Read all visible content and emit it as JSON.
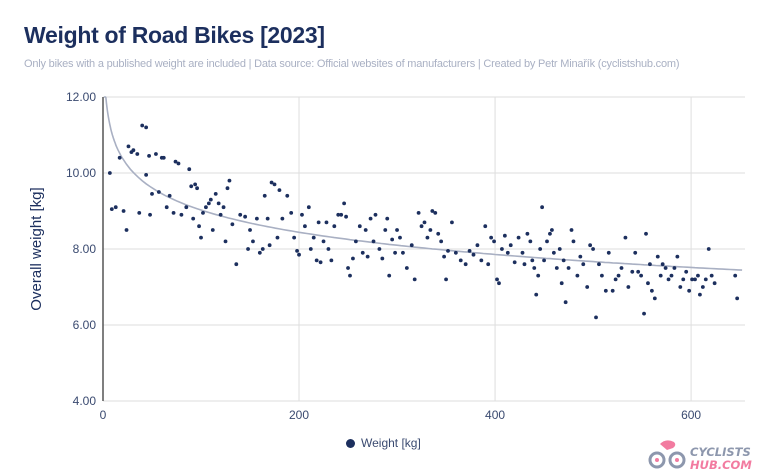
{
  "title": "Weight of Road Bikes [2023]",
  "subtitle": "Only bikes with a published weight are included | Data source: Official websites of manufacturers | Created by Petr Minařík (cyclistshub.com)",
  "logo": {
    "line1": "CYCLISTS",
    "line2": "HUB.COM",
    "colors": {
      "pink": "#f27ba0",
      "gray": "#8d97ad"
    }
  },
  "chart_data": {
    "type": "scatter",
    "title": "Weight of Road Bikes [2023]",
    "xlabel": "",
    "ylabel": "Overall weight [kg]",
    "xlim": [
      0,
      655
    ],
    "ylim": [
      4,
      12
    ],
    "xticks": [
      0,
      200,
      400,
      600
    ],
    "yticks": [
      4,
      6,
      8,
      10,
      12
    ],
    "ytick_labels": [
      "4.00",
      "6.00",
      "8.00",
      "10.00",
      "12.00"
    ],
    "grid": true,
    "legend_position": "bottom",
    "trendline": {
      "type": "logarithmic",
      "color": "#a9b0c3"
    },
    "colors": {
      "points": "#1c2f5e",
      "grid": "#dedede",
      "axis": "#555555"
    },
    "series": [
      {
        "name": "Weight [kg]",
        "points": [
          [
            7,
            10.0
          ],
          [
            9,
            9.05
          ],
          [
            13,
            9.1
          ],
          [
            17,
            10.4
          ],
          [
            21,
            9.0
          ],
          [
            24,
            8.5
          ],
          [
            26,
            10.7
          ],
          [
            29,
            10.55
          ],
          [
            31,
            10.6
          ],
          [
            35,
            10.5
          ],
          [
            37,
            8.95
          ],
          [
            40,
            11.25
          ],
          [
            44,
            11.2
          ],
          [
            44,
            9.95
          ],
          [
            47,
            10.45
          ],
          [
            48,
            8.9
          ],
          [
            50,
            9.45
          ],
          [
            54,
            10.5
          ],
          [
            57,
            9.5
          ],
          [
            60,
            10.4
          ],
          [
            62,
            10.4
          ],
          [
            65,
            9.1
          ],
          [
            68,
            9.4
          ],
          [
            72,
            8.95
          ],
          [
            74,
            10.3
          ],
          [
            77,
            10.25
          ],
          [
            80,
            8.9
          ],
          [
            85,
            9.1
          ],
          [
            88,
            10.1
          ],
          [
            90,
            9.65
          ],
          [
            92,
            8.8
          ],
          [
            94,
            9.7
          ],
          [
            96,
            9.6
          ],
          [
            98,
            8.6
          ],
          [
            100,
            8.3
          ],
          [
            102,
            8.95
          ],
          [
            105,
            9.1
          ],
          [
            108,
            9.2
          ],
          [
            110,
            9.3
          ],
          [
            112,
            8.5
          ],
          [
            115,
            9.45
          ],
          [
            118,
            9.2
          ],
          [
            120,
            8.9
          ],
          [
            123,
            9.1
          ],
          [
            125,
            8.2
          ],
          [
            127,
            9.6
          ],
          [
            129,
            9.8
          ],
          [
            132,
            8.65
          ],
          [
            136,
            7.6
          ],
          [
            140,
            8.9
          ],
          [
            145,
            8.85
          ],
          [
            148,
            8.0
          ],
          [
            150,
            8.5
          ],
          [
            153,
            8.2
          ],
          [
            157,
            8.8
          ],
          [
            160,
            7.9
          ],
          [
            163,
            8.0
          ],
          [
            165,
            9.4
          ],
          [
            168,
            8.8
          ],
          [
            170,
            8.1
          ],
          [
            172,
            9.75
          ],
          [
            175,
            9.7
          ],
          [
            178,
            8.3
          ],
          [
            180,
            9.55
          ],
          [
            183,
            8.8
          ],
          [
            188,
            9.4
          ],
          [
            192,
            8.95
          ],
          [
            195,
            8.3
          ],
          [
            198,
            7.95
          ],
          [
            200,
            7.85
          ],
          [
            203,
            8.9
          ],
          [
            206,
            8.6
          ],
          [
            210,
            9.1
          ],
          [
            212,
            8.0
          ],
          [
            215,
            8.3
          ],
          [
            218,
            7.7
          ],
          [
            220,
            8.7
          ],
          [
            222,
            7.65
          ],
          [
            225,
            8.2
          ],
          [
            228,
            8.7
          ],
          [
            230,
            8.0
          ],
          [
            233,
            7.7
          ],
          [
            236,
            8.6
          ],
          [
            240,
            8.9
          ],
          [
            243,
            8.9
          ],
          [
            246,
            9.2
          ],
          [
            248,
            8.85
          ],
          [
            250,
            7.5
          ],
          [
            252,
            7.3
          ],
          [
            255,
            7.75
          ],
          [
            258,
            8.2
          ],
          [
            262,
            8.6
          ],
          [
            265,
            7.9
          ],
          [
            268,
            8.5
          ],
          [
            270,
            7.8
          ],
          [
            273,
            8.8
          ],
          [
            276,
            8.2
          ],
          [
            278,
            8.9
          ],
          [
            282,
            8.0
          ],
          [
            285,
            7.75
          ],
          [
            288,
            8.5
          ],
          [
            290,
            8.8
          ],
          [
            292,
            7.3
          ],
          [
            295,
            8.25
          ],
          [
            298,
            7.9
          ],
          [
            300,
            8.5
          ],
          [
            303,
            8.3
          ],
          [
            306,
            7.9
          ],
          [
            310,
            7.5
          ],
          [
            315,
            8.1
          ],
          [
            318,
            7.2
          ],
          [
            322,
            8.95
          ],
          [
            325,
            8.6
          ],
          [
            328,
            8.7
          ],
          [
            331,
            8.3
          ],
          [
            334,
            8.5
          ],
          [
            336,
            9.0
          ],
          [
            339,
            8.95
          ],
          [
            342,
            8.4
          ],
          [
            345,
            8.2
          ],
          [
            348,
            7.8
          ],
          [
            350,
            7.2
          ],
          [
            352,
            7.95
          ],
          [
            356,
            8.7
          ],
          [
            360,
            7.9
          ],
          [
            365,
            7.7
          ],
          [
            370,
            7.6
          ],
          [
            374,
            7.95
          ],
          [
            378,
            7.85
          ],
          [
            382,
            8.1
          ],
          [
            386,
            7.7
          ],
          [
            390,
            8.6
          ],
          [
            393,
            7.6
          ],
          [
            396,
            8.3
          ],
          [
            399,
            8.2
          ],
          [
            402,
            7.2
          ],
          [
            404,
            7.1
          ],
          [
            407,
            8.0
          ],
          [
            410,
            8.35
          ],
          [
            413,
            7.9
          ],
          [
            416,
            8.1
          ],
          [
            420,
            7.65
          ],
          [
            424,
            8.3
          ],
          [
            428,
            7.9
          ],
          [
            430,
            7.6
          ],
          [
            433,
            8.4
          ],
          [
            436,
            8.2
          ],
          [
            438,
            7.7
          ],
          [
            440,
            7.5
          ],
          [
            442,
            6.8
          ],
          [
            444,
            7.3
          ],
          [
            446,
            8.0
          ],
          [
            448,
            9.1
          ],
          [
            450,
            7.7
          ],
          [
            453,
            8.2
          ],
          [
            456,
            8.4
          ],
          [
            458,
            8.5
          ],
          [
            460,
            7.9
          ],
          [
            463,
            7.5
          ],
          [
            466,
            8.0
          ],
          [
            468,
            7.1
          ],
          [
            470,
            7.7
          ],
          [
            472,
            6.6
          ],
          [
            475,
            7.5
          ],
          [
            478,
            8.5
          ],
          [
            480,
            8.2
          ],
          [
            484,
            7.3
          ],
          [
            487,
            7.8
          ],
          [
            490,
            7.6
          ],
          [
            494,
            7.0
          ],
          [
            497,
            8.1
          ],
          [
            500,
            8.0
          ],
          [
            503,
            6.2
          ],
          [
            506,
            7.6
          ],
          [
            509,
            7.3
          ],
          [
            513,
            6.9
          ],
          [
            516,
            7.9
          ],
          [
            520,
            6.9
          ],
          [
            523,
            7.2
          ],
          [
            526,
            7.3
          ],
          [
            529,
            7.5
          ],
          [
            533,
            8.3
          ],
          [
            536,
            7.0
          ],
          [
            540,
            7.4
          ],
          [
            543,
            7.9
          ],
          [
            546,
            7.4
          ],
          [
            549,
            7.3
          ],
          [
            552,
            6.3
          ],
          [
            554,
            8.4
          ],
          [
            556,
            7.1
          ],
          [
            558,
            7.6
          ],
          [
            560,
            6.9
          ],
          [
            563,
            6.7
          ],
          [
            566,
            7.8
          ],
          [
            569,
            7.3
          ],
          [
            571,
            7.6
          ],
          [
            574,
            7.5
          ],
          [
            577,
            7.2
          ],
          [
            580,
            7.3
          ],
          [
            583,
            7.5
          ],
          [
            586,
            7.8
          ],
          [
            589,
            7.0
          ],
          [
            592,
            7.2
          ],
          [
            595,
            7.4
          ],
          [
            598,
            6.9
          ],
          [
            601,
            7.2
          ],
          [
            604,
            7.2
          ],
          [
            607,
            7.3
          ],
          [
            609,
            6.8
          ],
          [
            612,
            7.0
          ],
          [
            615,
            7.2
          ],
          [
            618,
            8.0
          ],
          [
            621,
            7.3
          ],
          [
            624,
            7.1
          ],
          [
            645,
            7.3
          ],
          [
            647,
            6.7
          ]
        ]
      }
    ]
  }
}
